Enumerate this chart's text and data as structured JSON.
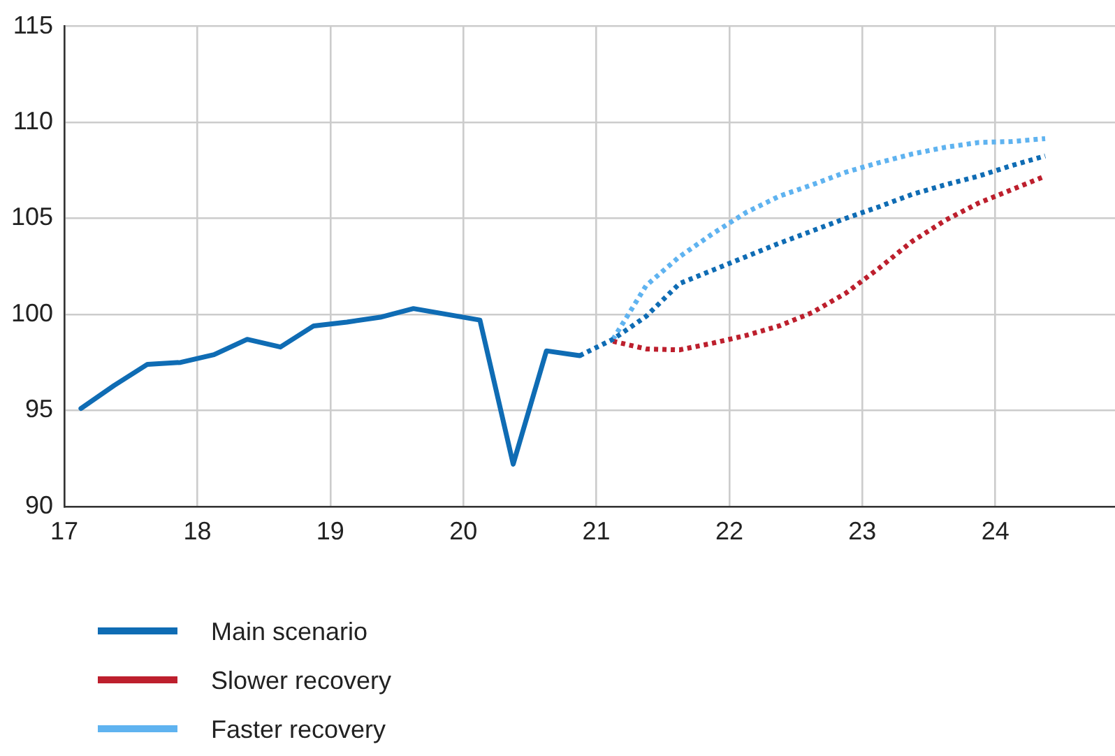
{
  "chart_data": {
    "type": "line",
    "xlim": [
      17,
      24.9
    ],
    "xticks": [
      17,
      18,
      19,
      20,
      21,
      22,
      23,
      24
    ],
    "ylim": [
      90,
      115
    ],
    "yticks": [
      90,
      95,
      100,
      105,
      110,
      115
    ],
    "grid": true,
    "legend": "bottom",
    "marker": "none",
    "series": [
      {
        "name": "Main scenario",
        "color": "#0f6cb4",
        "line_style": "solid",
        "x": [
          17.125,
          17.375,
          17.625,
          17.875,
          18.125,
          18.375,
          18.625,
          18.875,
          19.125,
          19.375,
          19.625,
          19.875,
          20.125,
          20.375,
          20.625,
          20.875
        ],
        "values": [
          95.1,
          96.3,
          97.4,
          97.5,
          97.9,
          98.7,
          98.3,
          99.4,
          99.6,
          99.85,
          100.3,
          100.0,
          99.7,
          92.2,
          98.1,
          97.85
        ]
      },
      {
        "color": "#0f6cb4",
        "line_style": "dotted",
        "x": [
          20.875,
          21.125,
          21.375,
          21.625,
          21.875,
          22.125,
          22.375,
          22.625,
          22.875,
          23.125,
          23.375,
          23.625,
          23.875,
          24.125,
          24.375
        ],
        "values": [
          97.85,
          98.7,
          99.9,
          101.6,
          102.3,
          103.0,
          103.7,
          104.35,
          105.0,
          105.6,
          106.25,
          106.75,
          107.2,
          107.75,
          108.25
        ]
      },
      {
        "name": "Slower recovery",
        "color": "#bd1f2d",
        "line_style": "dotted",
        "x": [
          21.125,
          21.375,
          21.625,
          21.875,
          22.125,
          22.375,
          22.625,
          22.875,
          23.125,
          23.375,
          23.625,
          23.875,
          24.125,
          24.375
        ],
        "values": [
          98.6,
          98.2,
          98.15,
          98.5,
          98.9,
          99.4,
          100.1,
          101.1,
          102.4,
          103.8,
          104.9,
          105.8,
          106.5,
          107.2
        ]
      },
      {
        "name": "Faster recovery",
        "color": "#5fb3f0",
        "line_style": "dotted",
        "x": [
          21.125,
          21.375,
          21.625,
          21.875,
          22.125,
          22.375,
          22.625,
          22.875,
          23.125,
          23.375,
          23.625,
          23.875,
          24.125,
          24.375
        ],
        "values": [
          98.7,
          101.5,
          103.0,
          104.2,
          105.3,
          106.15,
          106.75,
          107.4,
          107.9,
          108.35,
          108.7,
          108.95,
          109.0,
          109.15
        ]
      }
    ]
  }
}
